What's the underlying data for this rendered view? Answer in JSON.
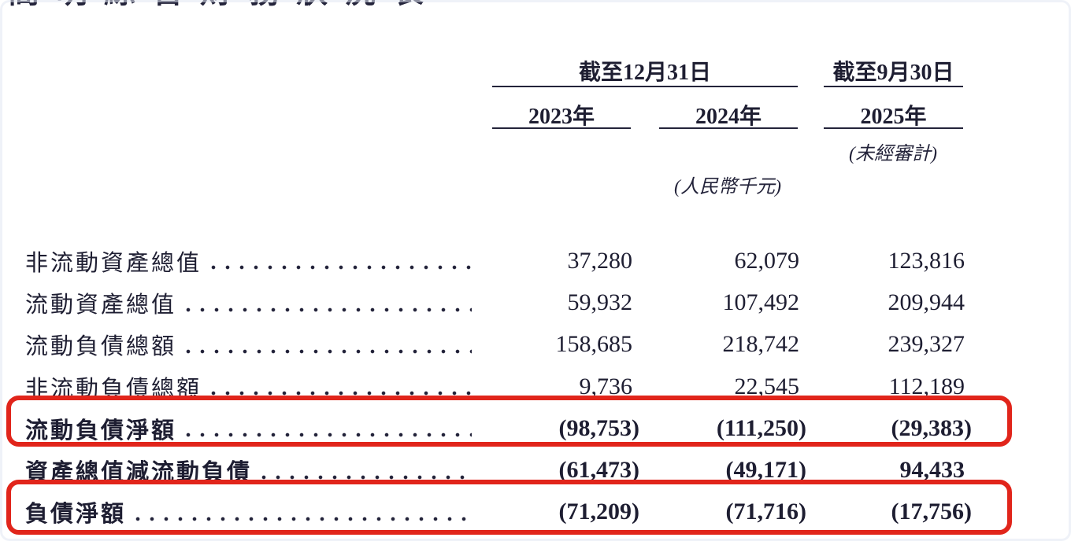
{
  "page": {
    "clipped_title": "簡明綜合財務狀況表"
  },
  "header": {
    "period_group_1": "截至12月31日",
    "period_group_2": "截至9月30日",
    "years": [
      "2023年",
      "2024年",
      "2025年"
    ],
    "unaudited_note": "(未經審計)",
    "currency_note": "(人民幣千元)"
  },
  "table": {
    "rows": [
      {
        "label": "非流動資產總值",
        "values": [
          "37,280",
          "62,079",
          "123,816"
        ],
        "bold": false,
        "boxed": false
      },
      {
        "label": "流動資產總值",
        "values": [
          "59,932",
          "107,492",
          "209,944"
        ],
        "bold": false,
        "boxed": false
      },
      {
        "label": "流動負債總額",
        "values": [
          "158,685",
          "218,742",
          "239,327"
        ],
        "bold": false,
        "boxed": false
      },
      {
        "label": "非流動負債總額",
        "values": [
          "9,736",
          "22,545",
          "112,189"
        ],
        "bold": false,
        "boxed": false
      },
      {
        "label": "流動負債淨額",
        "values": [
          "(98,753)",
          "(111,250)",
          "(29,383)"
        ],
        "bold": true,
        "boxed": true
      },
      {
        "label": "資產總值減流動負債",
        "values": [
          "(61,473)",
          "(49,171)",
          "94,433"
        ],
        "bold": true,
        "boxed": false
      },
      {
        "label": "負債淨額",
        "values": [
          "(71,209)",
          "(71,716)",
          "(17,756)"
        ],
        "bold": true,
        "boxed": true
      }
    ]
  },
  "colors": {
    "highlight_red": "#e1251b",
    "text": "#1e1e32",
    "rule": "#23233a",
    "background": "#ffffff"
  }
}
